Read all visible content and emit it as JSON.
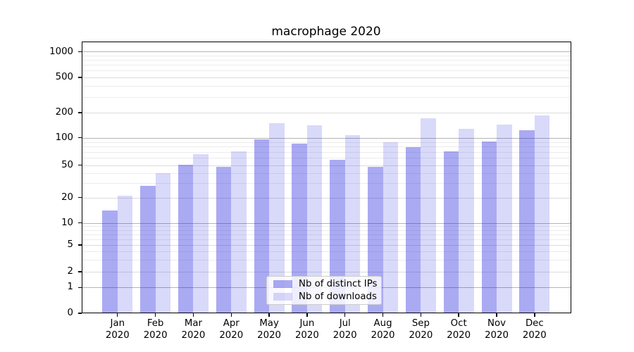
{
  "title": "macrophage 2020",
  "legend": {
    "items": [
      {
        "label": "Nb of distinct IPs"
      },
      {
        "label": "Nb of downloads"
      }
    ]
  },
  "axis": {
    "ytick_labels": [
      "0",
      "1",
      "2",
      "5",
      "10",
      "20",
      "50",
      "100",
      "200",
      "500",
      "1000"
    ],
    "xtick_year_line": "2020"
  },
  "colors": {
    "bar_distinct_ips": "rgba(31,31,224,0.38)",
    "bar_downloads": "rgba(31,31,224,0.17)",
    "grid_power10": "#b4b4b4",
    "grid_labeled": "#dcdcdc",
    "grid_minor": "#ececec",
    "spine": "#000000",
    "legend_border": "#cccccc"
  },
  "chart_data": {
    "type": "bar",
    "title": "macrophage 2020",
    "xlabel": "",
    "ylabel": "",
    "yscale": "symlog",
    "grid": true,
    "legend_position": "lower center",
    "categories": [
      "Jan 2020",
      "Feb 2020",
      "Mar 2020",
      "Apr 2020",
      "May 2020",
      "Jun 2020",
      "Jul 2020",
      "Aug 2020",
      "Sep 2020",
      "Oct 2020",
      "Nov 2020",
      "Dec 2020"
    ],
    "yticks": [
      0,
      1,
      2,
      5,
      10,
      20,
      50,
      100,
      200,
      500,
      1000
    ],
    "yticks_minor": [
      3,
      4,
      6,
      7,
      8,
      9,
      30,
      40,
      60,
      70,
      80,
      90,
      300,
      400,
      600,
      700,
      800,
      900
    ],
    "ylim": [
      0,
      1320
    ],
    "series": [
      {
        "name": "Nb of distinct IPs",
        "values": [
          14,
          28,
          51,
          48,
          96,
          87,
          57,
          48,
          79,
          71,
          91,
          122
        ]
      },
      {
        "name": "Nb of downloads",
        "values": [
          21,
          40,
          66,
          71,
          150,
          141,
          107,
          89,
          170,
          128,
          145,
          185
        ]
      }
    ]
  }
}
